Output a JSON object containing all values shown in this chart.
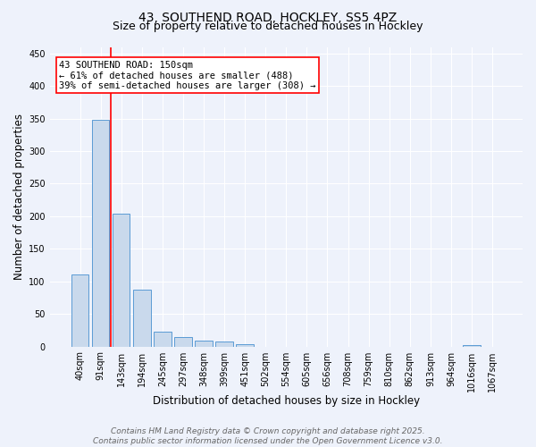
{
  "title_line1": "43, SOUTHEND ROAD, HOCKLEY, SS5 4PZ",
  "title_line2": "Size of property relative to detached houses in Hockley",
  "xlabel": "Distribution of detached houses by size in Hockley",
  "ylabel": "Number of detached properties",
  "categories": [
    "40sqm",
    "91sqm",
    "143sqm",
    "194sqm",
    "245sqm",
    "297sqm",
    "348sqm",
    "399sqm",
    "451sqm",
    "502sqm",
    "554sqm",
    "605sqm",
    "656sqm",
    "708sqm",
    "759sqm",
    "810sqm",
    "862sqm",
    "913sqm",
    "964sqm",
    "1016sqm",
    "1067sqm"
  ],
  "values": [
    110,
    348,
    204,
    87,
    23,
    15,
    9,
    7,
    4,
    0,
    0,
    0,
    0,
    0,
    0,
    0,
    0,
    0,
    0,
    2,
    0
  ],
  "bar_color": "#c9d9ec",
  "bar_edge_color": "#5b9bd5",
  "vline_index": 2,
  "vline_color": "red",
  "annotation_text": "43 SOUTHEND ROAD: 150sqm\n← 61% of detached houses are smaller (488)\n39% of semi-detached houses are larger (308) →",
  "annotation_box_color": "white",
  "annotation_box_edge_color": "red",
  "ylim": [
    0,
    460
  ],
  "yticks": [
    0,
    50,
    100,
    150,
    200,
    250,
    300,
    350,
    400,
    450
  ],
  "bg_color": "#eef2fb",
  "grid_color": "white",
  "footer_line1": "Contains HM Land Registry data © Crown copyright and database right 2025.",
  "footer_line2": "Contains public sector information licensed under the Open Government Licence v3.0.",
  "title_fontsize": 10,
  "subtitle_fontsize": 9,
  "axis_label_fontsize": 8.5,
  "tick_fontsize": 7,
  "annotation_fontsize": 7.5,
  "footer_fontsize": 6.5
}
